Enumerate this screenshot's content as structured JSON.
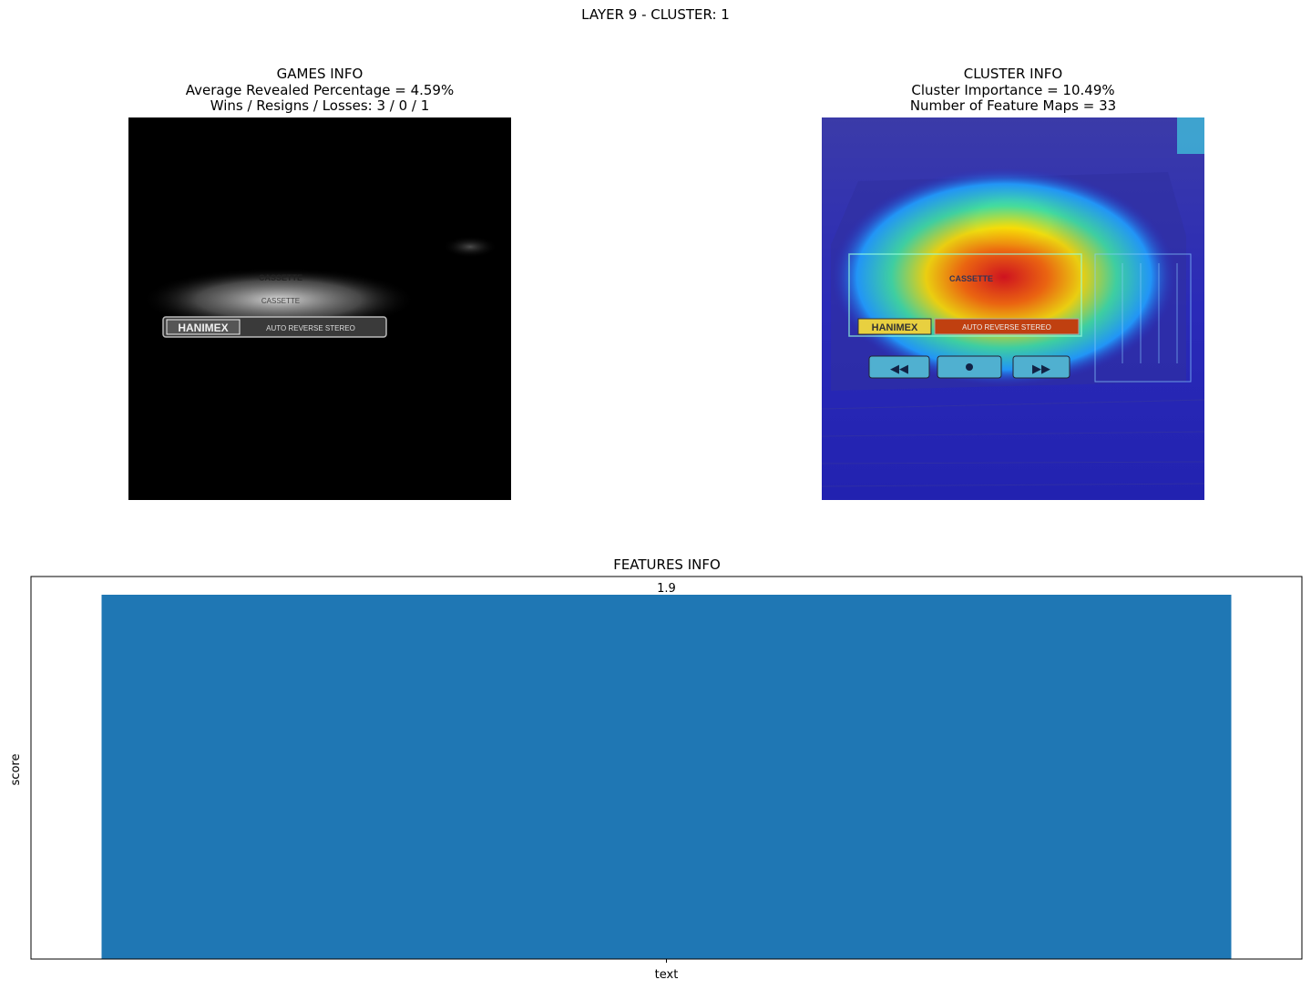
{
  "figure": {
    "suptitle": "LAYER 9 - CLUSTER: 1"
  },
  "games_info": {
    "title": "GAMES INFO",
    "line1": "Average Revealed Percentage = 4.59%",
    "line2": "Wins / Resigns / Losses: 3 / 0 / 1"
  },
  "cluster_info": {
    "title": "CLUSTER INFO",
    "line1": "Cluster Importance = 10.49%",
    "line2": "Number of Feature Maps = 33"
  },
  "chart_data": {
    "type": "bar",
    "title": "FEATURES INFO",
    "categories": [
      "text"
    ],
    "values": [
      1.9
    ],
    "data_labels": [
      "1.9"
    ],
    "xlabel": "",
    "ylabel": "score",
    "ylim": [
      0,
      1.995
    ],
    "grid": false,
    "color": "#1f77b4"
  },
  "colors": {
    "bar": "#1f77b4",
    "masked_background": "#000000"
  }
}
